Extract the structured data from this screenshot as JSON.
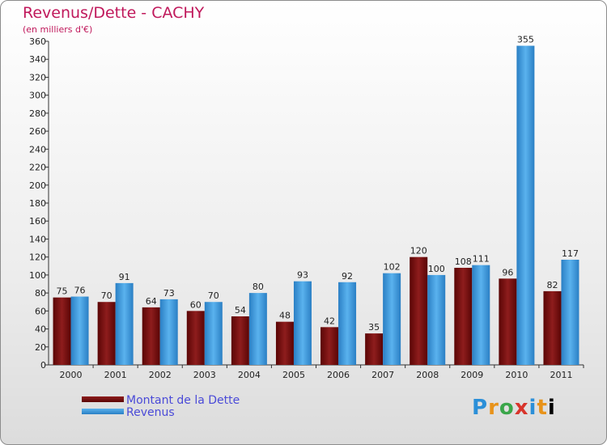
{
  "chart_data": {
    "type": "bar",
    "title": "Revenus/Dette - CACHY",
    "subtitle": "(en milliers d'€)",
    "categories": [
      "2000",
      "2001",
      "2002",
      "2003",
      "2004",
      "2005",
      "2006",
      "2007",
      "2008",
      "2009",
      "2010",
      "2011"
    ],
    "series": [
      {
        "name": "Montant de la Dette",
        "color": "#7a0b0b",
        "values": [
          75,
          70,
          64,
          60,
          54,
          48,
          42,
          35,
          120,
          108,
          96,
          82
        ]
      },
      {
        "name": "Revenus",
        "color": "#3d9be0",
        "values": [
          76,
          91,
          73,
          70,
          80,
          93,
          92,
          102,
          100,
          111,
          355,
          117
        ]
      }
    ],
    "ylim": [
      0,
      360
    ],
    "yticks": [
      0,
      20,
      40,
      60,
      80,
      100,
      120,
      140,
      160,
      180,
      200,
      220,
      240,
      260,
      280,
      300,
      320,
      340,
      360
    ],
    "grid": false,
    "legend_position": "bottom-left"
  },
  "logo_text": [
    "P",
    "r",
    "o",
    "x",
    "i",
    "t",
    "i"
  ]
}
